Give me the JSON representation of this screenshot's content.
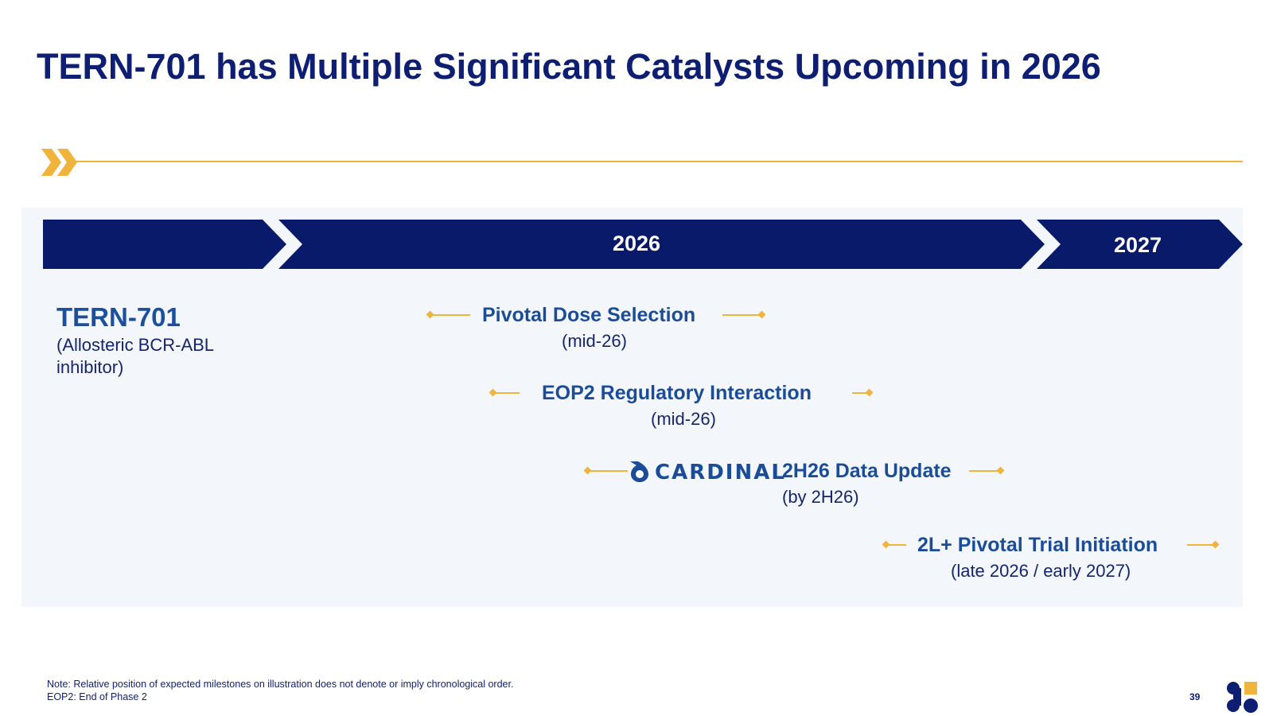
{
  "slide": {
    "title": "TERN-701 has Multiple Significant Catalysts Upcoming in 2026",
    "page_number": "39"
  },
  "colors": {
    "navy": "#0a1a6b",
    "title_navy": "#0e1f73",
    "label_blue": "#1a4c98",
    "gold": "#f0b43c",
    "panel_bg": "#f3f7fc"
  },
  "timeline": {
    "years": [
      "2026",
      "2027"
    ]
  },
  "asset": {
    "name": "TERN-701",
    "description": "(Allosteric BCR-ABL inhibitor)"
  },
  "milestones": [
    {
      "label": "Pivotal Dose Selection",
      "timing": "(mid-26)"
    },
    {
      "label": "EOP2 Regulatory Interaction",
      "timing": "(mid-26)"
    },
    {
      "label": "2H26 Data Update",
      "timing": "(by 2H26)",
      "logo": "CARDINAL"
    },
    {
      "label": "2L+ Pivotal Trial Initiation",
      "timing": "(late 2026 / early 2027)"
    }
  ],
  "footnotes": {
    "note": "Note: Relative position of expected milestones on illustration does not denote or imply chronological order.",
    "abbreviation": "EOP2: End of Phase 2"
  },
  "icons": {
    "header_mark": "double-chevron-icon",
    "cardinal_mark": "cardinal-drop-icon",
    "company_logo": "company-logo-icon"
  }
}
